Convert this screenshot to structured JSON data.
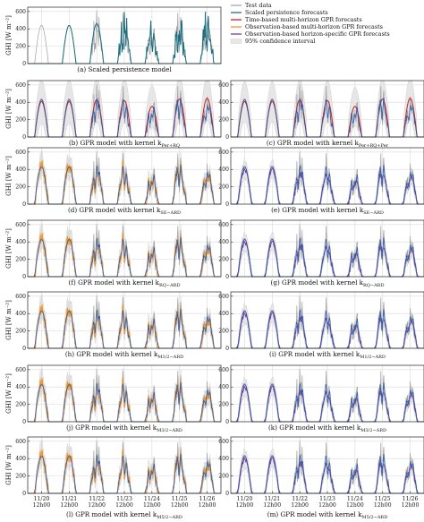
{
  "chart_data": {
    "type": "line",
    "title": "",
    "ylabel": "GHI [W m⁻²]",
    "x_ticks": [
      {
        "date": "11/20",
        "time": "12h00"
      },
      {
        "date": "11/21",
        "time": "12h00"
      },
      {
        "date": "11/22",
        "time": "12h00"
      },
      {
        "date": "11/23",
        "time": "12h00"
      },
      {
        "date": "11/24",
        "time": "12h00"
      },
      {
        "date": "11/25",
        "time": "12h00"
      },
      {
        "date": "11/26",
        "time": "12h00"
      }
    ],
    "ylim": [
      0,
      650
    ],
    "yticks": [
      0,
      200,
      400,
      600
    ],
    "grid": true,
    "legend_position": "top-right",
    "legend": [
      {
        "label": "Test data",
        "color": "#a8a8a8",
        "kind": "line"
      },
      {
        "label": "Scaled persistence forecasts",
        "color": "#1f6f80",
        "kind": "line"
      },
      {
        "label": "Time-based multi-horizon GPR forecasts",
        "color": "#c0262d",
        "kind": "line"
      },
      {
        "label": "Observation-based multi-horizon GPR forecasts",
        "color": "#f0952a",
        "kind": "line"
      },
      {
        "label": "Observation-based horizon-specific GPR forecasts",
        "color": "#7b3fa0",
        "kind": "line"
      },
      {
        "label": "95% confidence interval",
        "color": "#e6e6e6",
        "kind": "band"
      }
    ],
    "daily_peak_ghi": [
      440,
      440,
      460,
      450,
      380,
      470,
      480
    ],
    "panels": [
      {
        "id": "a",
        "caption": "(a) Scaled persistence model",
        "forecast": "persistence",
        "ci_width": 0
      },
      {
        "id": "b",
        "caption": "(b) GPR model with kernel k",
        "kernel_subscript": "Per+RQ",
        "forecast": "time",
        "ci_width": 190
      },
      {
        "id": "c",
        "caption": "(c) GPR model with kernel k",
        "kernel_subscript": "Per+RQ+Per",
        "forecast": "time",
        "ci_width": 170
      },
      {
        "id": "d",
        "caption": "(d) GPR model with kernel k",
        "kernel_subscript": "SE−ARD",
        "forecast": "obs_multi",
        "ci_width": 40
      },
      {
        "id": "e",
        "caption": "(e) GPR model with kernel k",
        "kernel_subscript": "SE−ARD",
        "forecast": "obs_specific",
        "ci_width": 40
      },
      {
        "id": "f",
        "caption": "(f) GPR model with kernel k",
        "kernel_subscript": "RQ−ARD",
        "forecast": "obs_multi",
        "ci_width": 40
      },
      {
        "id": "g",
        "caption": "(g) GPR model with kernel k",
        "kernel_subscript": "RQ−ARD",
        "forecast": "obs_specific",
        "ci_width": 40
      },
      {
        "id": "h",
        "caption": "(h) GPR model with kernel k",
        "kernel_subscript": "M1/2−ARD",
        "forecast": "obs_multi",
        "ci_width": 45
      },
      {
        "id": "i",
        "caption": "(i) GPR model with kernel k",
        "kernel_subscript": "M1/2−ARD",
        "forecast": "obs_specific",
        "ci_width": 45
      },
      {
        "id": "j",
        "caption": "(j) GPR model with kernel k",
        "kernel_subscript": "M3/2−ARD",
        "forecast": "obs_multi",
        "ci_width": 40
      },
      {
        "id": "k",
        "caption": "(k) GPR model with kernel k",
        "kernel_subscript": "M3/2−ARD",
        "forecast": "obs_specific",
        "ci_width": 40
      },
      {
        "id": "l",
        "caption": "(l) GPR model with kernel k",
        "kernel_subscript": "M5/2−ARD",
        "forecast": "obs_multi",
        "ci_width": 40
      },
      {
        "id": "m",
        "caption": "(m) GPR model with kernel k",
        "kernel_subscript": "M5/2−ARD",
        "forecast": "obs_specific",
        "ci_width": 40
      }
    ]
  }
}
